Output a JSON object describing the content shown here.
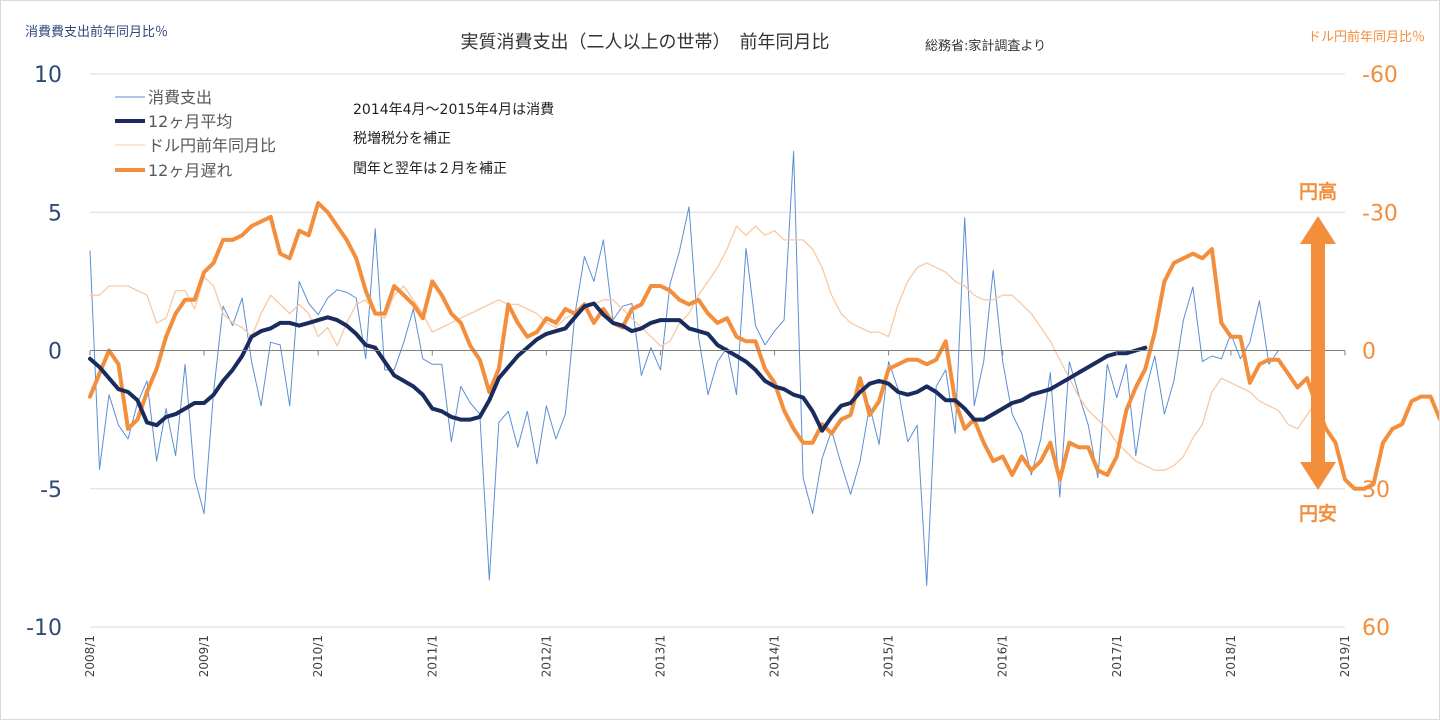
{
  "chart_data": {
    "type": "line",
    "title": "実質消費支出（二人以上の世帯）　前年同月比",
    "source_note": "総務省:家計調査より",
    "left_axis_label": "消費費支出前年同月比％",
    "right_axis_label": "ドル円前年同月比％",
    "y_left": {
      "min": -10,
      "max": 10,
      "ticks": [
        10,
        5,
        0,
        -5,
        -10
      ],
      "tick_labels": [
        "10",
        "5",
        "0",
        "-5",
        "-10"
      ]
    },
    "y_right": {
      "min": -60,
      "max": 60,
      "reversed": true,
      "ticks": [
        -60,
        -30,
        0,
        30,
        60
      ],
      "tick_labels": [
        "-60",
        "-30",
        "0",
        "30",
        "60"
      ]
    },
    "x_axis": {
      "start": "2008/1",
      "end": "2019/1",
      "tick_labels": [
        "2008/1",
        "2009/1",
        "2010/1",
        "2011/1",
        "2012/1",
        "2013/1",
        "2014/1",
        "2015/1",
        "2016/1",
        "2017/1",
        "2018/1",
        "2019/1"
      ]
    },
    "legend": [
      "消費支出",
      "12ヶ月平均",
      "ドル円前年同月比",
      "12ヶ月遅れ"
    ],
    "annotations": [
      "2014年4月～2015年4月は消費",
      "税増税分を補正",
      "閏年と翌年は２月を補正"
    ],
    "arrow_labels": {
      "top": "円高",
      "bottom": "円安"
    },
    "colors": {
      "consumption": "#5b8fd4",
      "avg12": "#1a2b5e",
      "usdjpy": "#f8c9a3",
      "lag12": "#f28e3c",
      "left_axis_text": "#2d4a7a",
      "right_axis_text": "#f28e3c",
      "grid": "#d9d9d9"
    },
    "series": [
      {
        "name": "消費支出",
        "axis": "left",
        "start": "2008/1",
        "values": [
          3.6,
          -4.3,
          -1.6,
          -2.7,
          -3.2,
          -1.9,
          -1.1,
          -4.0,
          -2.1,
          -3.8,
          -0.5,
          -4.6,
          -5.9,
          -1.5,
          1.6,
          0.9,
          1.9,
          -0.4,
          -2.0,
          0.3,
          0.2,
          -2.0,
          2.5,
          1.7,
          1.3,
          1.9,
          2.2,
          2.1,
          1.9,
          -0.3,
          4.4,
          -0.7,
          -0.7,
          0.3,
          1.5,
          -0.3,
          -0.5,
          -0.5,
          -3.3,
          -1.3,
          -1.9,
          -2.3,
          -8.3,
          -2.6,
          -2.2,
          -3.5,
          -2.2,
          -4.1,
          -2.0,
          -3.2,
          -2.3,
          1.3,
          3.4,
          2.5,
          4.0,
          1.1,
          1.6,
          1.7,
          -0.9,
          0.1,
          -0.7,
          2.4,
          3.6,
          5.2,
          0.5,
          -1.6,
          -0.4,
          0.1,
          -1.6,
          3.7,
          0.9,
          0.2,
          0.7,
          1.1,
          7.2,
          -4.6,
          -5.9,
          -3.9,
          -2.9,
          -4.1,
          -5.2,
          -4.0,
          -2.0,
          -3.4,
          -0.4,
          -1.4,
          -3.3,
          -2.7,
          -8.5,
          -1.3,
          -0.7,
          -3.0,
          4.8,
          -2.0,
          -0.4,
          2.9,
          -0.4,
          -2.3,
          -3.0,
          -4.5,
          -3.2,
          -0.8,
          -5.3,
          -0.4,
          -1.6,
          -2.7,
          -4.6,
          -0.5,
          -1.7,
          -0.5,
          -3.8,
          -1.5,
          -0.2,
          -2.3,
          -1.1,
          1.1,
          2.3,
          -0.4,
          -0.2,
          -0.3,
          0.6,
          -0.3,
          0.3,
          1.8,
          -0.5,
          0.0
        ]
      },
      {
        "name": "12ヶ月平均",
        "axis": "left",
        "start": "2008/1",
        "values": [
          -0.3,
          -0.6,
          -1.0,
          -1.4,
          -1.5,
          -1.8,
          -2.6,
          -2.7,
          -2.4,
          -2.3,
          -2.1,
          -1.9,
          -1.9,
          -1.6,
          -1.1,
          -0.7,
          -0.2,
          0.5,
          0.7,
          0.8,
          1.0,
          1.0,
          0.9,
          1.0,
          1.1,
          1.2,
          1.1,
          0.9,
          0.6,
          0.2,
          0.1,
          -0.4,
          -0.9,
          -1.1,
          -1.3,
          -1.6,
          -2.1,
          -2.2,
          -2.4,
          -2.5,
          -2.5,
          -2.4,
          -1.8,
          -1.0,
          -0.6,
          -0.2,
          0.1,
          0.4,
          0.6,
          0.7,
          0.8,
          1.2,
          1.6,
          1.7,
          1.3,
          1.0,
          0.9,
          0.7,
          0.8,
          1.0,
          1.1,
          1.1,
          1.1,
          0.8,
          0.7,
          0.6,
          0.2,
          0.0,
          -0.2,
          -0.4,
          -0.7,
          -1.1,
          -1.3,
          -1.4,
          -1.6,
          -1.7,
          -2.2,
          -2.9,
          -2.4,
          -2.0,
          -1.9,
          -1.5,
          -1.2,
          -1.1,
          -1.2,
          -1.5,
          -1.6,
          -1.5,
          -1.3,
          -1.5,
          -1.8,
          -1.8,
          -2.1,
          -2.5,
          -2.5,
          -2.3,
          -2.1,
          -1.9,
          -1.8,
          -1.6,
          -1.5,
          -1.4,
          -1.2,
          -1.0,
          -0.8,
          -0.6,
          -0.4,
          -0.2,
          -0.1,
          -0.1,
          0.0,
          0.1
        ]
      },
      {
        "name": "ドル円前年同月比",
        "axis": "right",
        "start": "2008/1",
        "values": [
          -12,
          -12,
          -14,
          -14,
          -14,
          -13,
          -12,
          -6,
          -7,
          -13,
          -13,
          -9,
          -16,
          -14,
          -8,
          -6,
          -5,
          -3,
          -8,
          -12,
          -10,
          -8,
          -10,
          -8,
          -3,
          -5,
          -1,
          -6,
          -10,
          -11,
          -8,
          -7,
          -12,
          -14,
          -11,
          -8,
          -4,
          -5,
          -6,
          -7,
          -8,
          -9,
          -10,
          -11,
          -10,
          -10,
          -9,
          -8,
          -6,
          -5,
          -7,
          -8,
          -9,
          -10,
          -11,
          -11,
          -9,
          -7,
          -5,
          -3,
          -1,
          -2,
          -6,
          -8,
          -12,
          -15,
          -18,
          -22,
          -27,
          -25,
          -27,
          -25,
          -26,
          -24,
          -24,
          -24,
          -22,
          -18,
          -12,
          -8,
          -6,
          -5,
          -4,
          -4,
          -3,
          -10,
          -15,
          -18,
          -19,
          -18,
          -17,
          -15,
          -14,
          -12,
          -11,
          -11,
          -12,
          -12,
          -10,
          -8,
          -5,
          -2,
          2,
          6,
          10,
          13,
          15,
          17,
          20,
          22,
          24,
          25,
          26,
          26,
          25,
          23,
          19,
          16,
          9,
          6,
          7,
          8,
          9,
          11,
          12,
          13,
          16,
          17,
          14,
          11
        ]
      },
      {
        "name": "12ヶ月遅れ",
        "axis": "right",
        "start": "2008/1",
        "values": [
          10,
          5,
          0,
          3,
          17,
          15,
          9,
          4,
          -3,
          -8,
          -11,
          -11,
          -17,
          -19,
          -24,
          -24,
          -25,
          -27,
          -28,
          -29,
          -21,
          -20,
          -26,
          -25,
          -32,
          -30,
          -27,
          -24,
          -20,
          -13,
          -8,
          -8,
          -14,
          -12,
          -10,
          -7,
          -15,
          -12,
          -8,
          -6,
          -1,
          2,
          9,
          4,
          -10,
          -6,
          -3,
          -4,
          -7,
          -6,
          -9,
          -8,
          -10,
          -6,
          -9,
          -6,
          -5,
          -9,
          -10,
          -14,
          -14,
          -13,
          -11,
          -10,
          -11,
          -8,
          -6,
          -7,
          -3,
          -2,
          -2,
          4,
          7,
          13,
          17,
          20,
          20,
          16,
          18,
          15,
          14,
          6,
          14,
          11,
          4,
          3,
          2,
          2,
          3,
          2,
          -2,
          11,
          17,
          15,
          20,
          24,
          23,
          27,
          23,
          26,
          24,
          20,
          28,
          20,
          21,
          21,
          26,
          27,
          23,
          13,
          8,
          4,
          -4,
          -15,
          -19,
          -20,
          -21,
          -20,
          -22,
          -6,
          -3,
          -3,
          7,
          3,
          2,
          2,
          5,
          8,
          6,
          12,
          17,
          20,
          28,
          30,
          30,
          29,
          20,
          17,
          16,
          11,
          10,
          10,
          15,
          15
        ]
      }
    ]
  }
}
